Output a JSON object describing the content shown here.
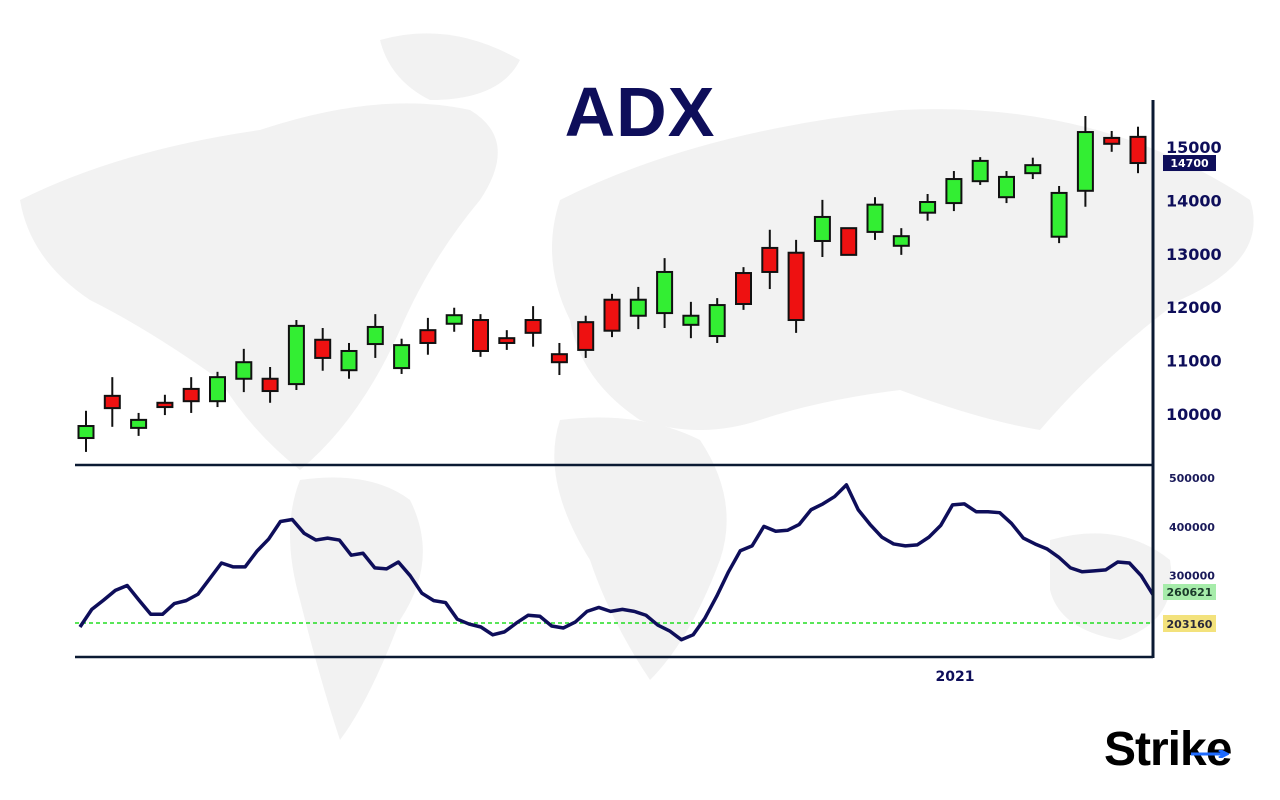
{
  "chart_data": [
    {
      "type": "candlestick",
      "title": "ADX",
      "y_ticks": [
        10000,
        11000,
        12000,
        13000,
        14000,
        15000
      ],
      "ylim": [
        9100,
        15700
      ],
      "last_price_label": "14700",
      "colors": {
        "up": "#33ee33",
        "down": "#ee1111",
        "wick": "#111111",
        "label_bg": "#0e0e5a"
      },
      "candles": [
        {
          "o": 9550,
          "h": 10060,
          "l": 9290,
          "c": 9775
        },
        {
          "o": 10340,
          "h": 10690,
          "l": 9760,
          "c": 10110
        },
        {
          "o": 9740,
          "h": 10020,
          "l": 9590,
          "c": 9890
        },
        {
          "o": 10210,
          "h": 10360,
          "l": 9980,
          "c": 10130
        },
        {
          "o": 10470,
          "h": 10690,
          "l": 10020,
          "c": 10240
        },
        {
          "o": 10240,
          "h": 10790,
          "l": 10130,
          "c": 10690
        },
        {
          "o": 10660,
          "h": 11220,
          "l": 10410,
          "c": 10970
        },
        {
          "o": 10660,
          "h": 10880,
          "l": 10210,
          "c": 10430
        },
        {
          "o": 10560,
          "h": 11760,
          "l": 10450,
          "c": 11650
        },
        {
          "o": 11390,
          "h": 11610,
          "l": 10810,
          "c": 11050
        },
        {
          "o": 10820,
          "h": 11330,
          "l": 10660,
          "c": 11180
        },
        {
          "o": 11310,
          "h": 11870,
          "l": 11050,
          "c": 11630
        },
        {
          "o": 10860,
          "h": 11410,
          "l": 10750,
          "c": 11290
        },
        {
          "o": 11570,
          "h": 11800,
          "l": 11110,
          "c": 11330
        },
        {
          "o": 11690,
          "h": 11990,
          "l": 11540,
          "c": 11850
        },
        {
          "o": 11760,
          "h": 11870,
          "l": 11070,
          "c": 11180
        },
        {
          "o": 11420,
          "h": 11570,
          "l": 11200,
          "c": 11330
        },
        {
          "o": 11760,
          "h": 12020,
          "l": 11260,
          "c": 11520
        },
        {
          "o": 11120,
          "h": 11330,
          "l": 10730,
          "c": 10970
        },
        {
          "o": 11720,
          "h": 11840,
          "l": 11050,
          "c": 11200
        },
        {
          "o": 12140,
          "h": 12250,
          "l": 11440,
          "c": 11560
        },
        {
          "o": 11840,
          "h": 12380,
          "l": 11590,
          "c": 12140
        },
        {
          "o": 11890,
          "h": 12920,
          "l": 11610,
          "c": 12660
        },
        {
          "o": 11670,
          "h": 12100,
          "l": 11420,
          "c": 11840
        },
        {
          "o": 11460,
          "h": 12170,
          "l": 11330,
          "c": 12040
        },
        {
          "o": 12640,
          "h": 12750,
          "l": 11950,
          "c": 12060
        },
        {
          "o": 13110,
          "h": 13450,
          "l": 12340,
          "c": 12660
        },
        {
          "o": 13020,
          "h": 13260,
          "l": 11520,
          "c": 11760
        },
        {
          "o": 13240,
          "h": 14010,
          "l": 12940,
          "c": 13690
        },
        {
          "o": 13480,
          "h": 13480,
          "l": 12980,
          "c": 12980
        },
        {
          "o": 13410,
          "h": 14060,
          "l": 13260,
          "c": 13920
        },
        {
          "o": 13150,
          "h": 13480,
          "l": 12980,
          "c": 13330
        },
        {
          "o": 13770,
          "h": 14120,
          "l": 13620,
          "c": 13970
        },
        {
          "o": 13950,
          "h": 14550,
          "l": 13800,
          "c": 14400
        },
        {
          "o": 14360,
          "h": 14810,
          "l": 14290,
          "c": 14740
        },
        {
          "o": 14060,
          "h": 14550,
          "l": 13950,
          "c": 14440
        },
        {
          "o": 14510,
          "h": 14800,
          "l": 14400,
          "c": 14660
        },
        {
          "o": 13320,
          "h": 14270,
          "l": 13200,
          "c": 14140
        },
        {
          "o": 14180,
          "h": 15580,
          "l": 13880,
          "c": 15280
        },
        {
          "o": 15170,
          "h": 15300,
          "l": 14910,
          "c": 15060
        },
        {
          "o": 15190,
          "h": 15380,
          "l": 14510,
          "c": 14700
        }
      ]
    },
    {
      "type": "line",
      "y_ticks": [
        300000,
        400000,
        500000
      ],
      "ylim": [
        165000,
        525000
      ],
      "x_tick_label": "2021",
      "current_value_label": "260621",
      "reference_value": 203160,
      "reference_label": "203160",
      "colors": {
        "line": "#0e0e5a",
        "reference": "#22dd22",
        "current_label_bg": "#a6ecaa",
        "reference_label_bg": "#f3e27c"
      },
      "values": [
        195000,
        231000,
        250000,
        270000,
        280000,
        250000,
        221000,
        221000,
        243000,
        249000,
        262000,
        294000,
        326000,
        318000,
        318000,
        350000,
        375000,
        411000,
        415000,
        387000,
        373000,
        377000,
        373000,
        342000,
        346000,
        316000,
        314000,
        328000,
        300000,
        264000,
        249000,
        245000,
        211000,
        201000,
        195000,
        179000,
        185000,
        203000,
        219000,
        217000,
        197000,
        193000,
        205000,
        227000,
        235000,
        227000,
        231000,
        227000,
        219000,
        199000,
        187000,
        169000,
        179000,
        213000,
        258000,
        308000,
        351000,
        361000,
        401000,
        391000,
        393000,
        405000,
        435000,
        447000,
        462000,
        486000,
        435000,
        405000,
        379000,
        365000,
        361000,
        363000,
        379000,
        403000,
        445000,
        447000,
        431000,
        431000,
        429000,
        407000,
        377000,
        365000,
        355000,
        338000,
        316000,
        308000,
        310000,
        312000,
        328000,
        326000,
        300000,
        261000
      ]
    }
  ],
  "logo": {
    "text": "Strike",
    "arrow_color": "#1e6bff"
  }
}
